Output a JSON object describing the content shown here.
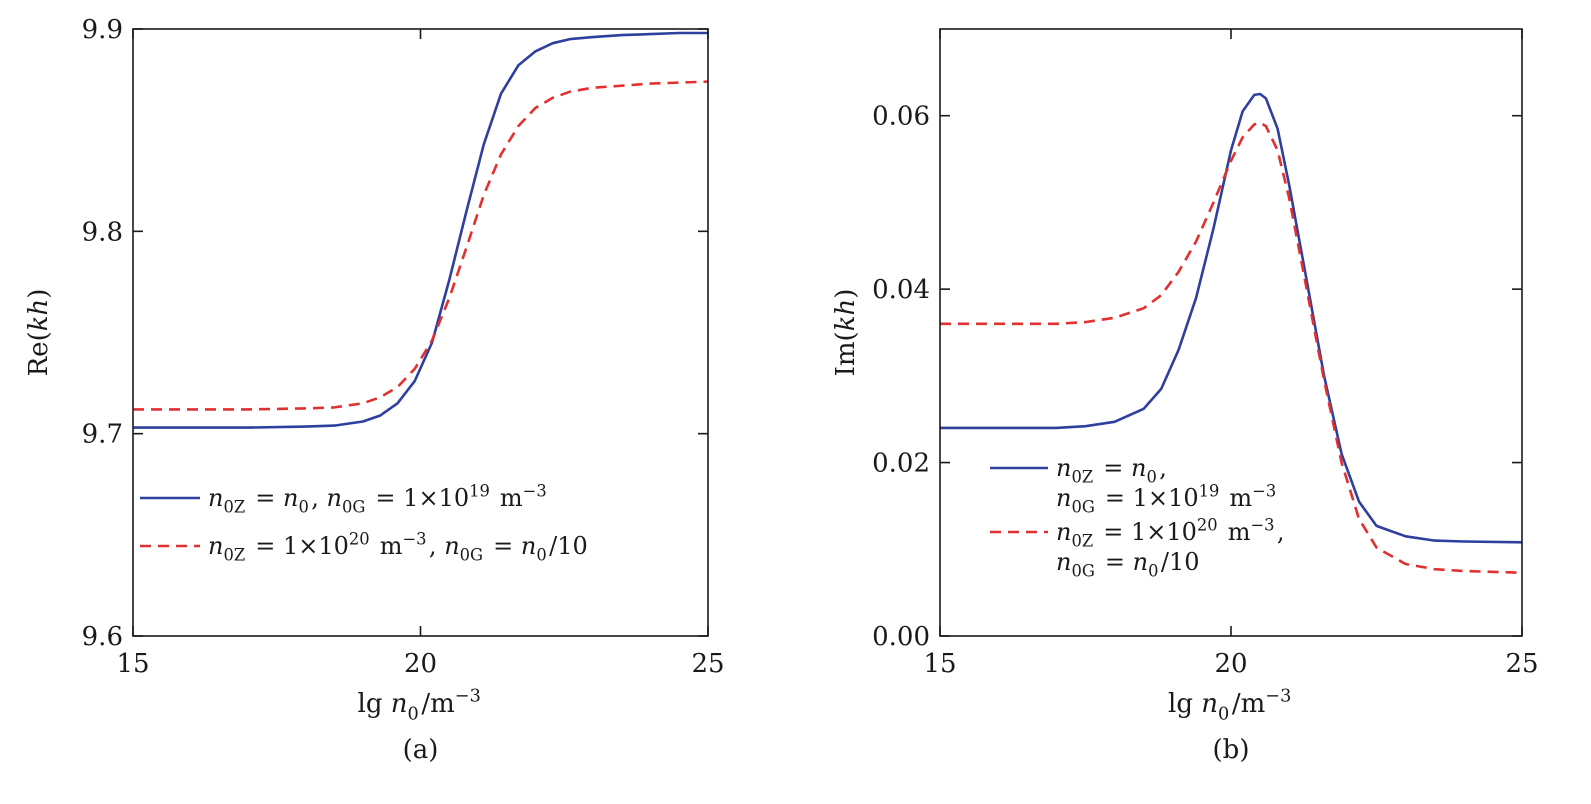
{
  "colors": {
    "series1": "#2e3f9e",
    "series2": "#e03030"
  },
  "chart_data": [
    {
      "type": "line",
      "panel_label": "(a)",
      "ylabel": "Re(kh)",
      "xlabel": "lg n0/m−3",
      "xlim": [
        15,
        25
      ],
      "ylim": [
        9.6,
        9.9
      ],
      "xticks": [
        15,
        20,
        25
      ],
      "xtick_labels": [
        "15",
        "20",
        "25"
      ],
      "yticks": [
        9.6,
        9.7,
        9.8,
        9.9
      ],
      "ytick_labels": [
        "9.6",
        "9.7",
        "9.8",
        "9.9"
      ],
      "grid": false,
      "legend_position": "lower-left",
      "series": [
        {
          "name": "n0Z = n0, n0G = 1×1019 m−3",
          "style": "solid",
          "legend_lines": [
            "n0Z = n0, n0G = 1×1019 m−3"
          ],
          "x": [
            15,
            16,
            17,
            18,
            18.5,
            19,
            19.3,
            19.6,
            19.9,
            20.2,
            20.5,
            20.8,
            21.1,
            21.4,
            21.7,
            22,
            22.3,
            22.6,
            23,
            23.5,
            24,
            24.5,
            25
          ],
          "y": [
            9.703,
            9.703,
            9.703,
            9.7035,
            9.704,
            9.706,
            9.709,
            9.715,
            9.726,
            9.745,
            9.776,
            9.81,
            9.843,
            9.868,
            9.882,
            9.889,
            9.893,
            9.895,
            9.896,
            9.897,
            9.8975,
            9.898,
            9.898
          ]
        },
        {
          "name": "n0Z = 1×1020 m−3, n0G = n0/10",
          "style": "dashed",
          "legend_lines": [
            "n0Z = 1×1020 m−3, n0G = n0/10"
          ],
          "x": [
            15,
            16,
            17,
            18,
            18.5,
            19,
            19.3,
            19.6,
            19.9,
            20.2,
            20.5,
            20.8,
            21.1,
            21.4,
            21.7,
            22,
            22.3,
            22.6,
            23,
            23.5,
            24,
            24.5,
            25
          ],
          "y": [
            9.712,
            9.712,
            9.712,
            9.7125,
            9.713,
            9.715,
            9.718,
            9.723,
            9.732,
            9.746,
            9.767,
            9.792,
            9.818,
            9.838,
            9.852,
            9.861,
            9.866,
            9.869,
            9.871,
            9.872,
            9.873,
            9.8735,
            9.874
          ]
        }
      ]
    },
    {
      "type": "line",
      "panel_label": "(b)",
      "ylabel": "Im(kh)",
      "xlabel": "lg n0/m−3",
      "xlim": [
        15,
        25
      ],
      "ylim": [
        0.0,
        0.07
      ],
      "xticks": [
        15,
        20,
        25
      ],
      "xtick_labels": [
        "15",
        "20",
        "25"
      ],
      "yticks": [
        0.0,
        0.02,
        0.04,
        0.06
      ],
      "ytick_labels": [
        "0.00",
        "0.02",
        "0.04",
        "0.06"
      ],
      "grid": false,
      "legend_position": "lower-left",
      "series": [
        {
          "name": "n0Z = n0, n0G = 1×1019 m−3",
          "style": "solid",
          "legend_lines": [
            "n0Z = n0,",
            "n0G = 1×1019 m−3"
          ],
          "x": [
            15,
            16,
            17,
            17.5,
            18,
            18.5,
            18.8,
            19.1,
            19.4,
            19.7,
            20,
            20.2,
            20.4,
            20.5,
            20.6,
            20.8,
            21,
            21.3,
            21.6,
            21.9,
            22.2,
            22.5,
            23,
            23.5,
            24,
            25
          ],
          "y": [
            0.024,
            0.024,
            0.024,
            0.0242,
            0.0247,
            0.0262,
            0.0285,
            0.033,
            0.039,
            0.047,
            0.056,
            0.0605,
            0.0624,
            0.0625,
            0.062,
            0.0585,
            0.052,
            0.041,
            0.03,
            0.021,
            0.0155,
            0.0127,
            0.0115,
            0.011,
            0.0109,
            0.0108
          ]
        },
        {
          "name": "n0Z = 1×1020 m−3, n0G = n0/10",
          "style": "dashed",
          "legend_lines": [
            "n0Z = 1×1020 m−3,",
            "n0G = n0/10"
          ],
          "x": [
            15,
            16,
            17,
            17.5,
            18,
            18.5,
            18.8,
            19.1,
            19.4,
            19.7,
            20,
            20.2,
            20.4,
            20.5,
            20.6,
            20.8,
            21,
            21.3,
            21.6,
            21.9,
            22.2,
            22.5,
            23,
            23.5,
            24,
            25
          ],
          "y": [
            0.036,
            0.036,
            0.036,
            0.0362,
            0.0367,
            0.0378,
            0.0393,
            0.042,
            0.0455,
            0.05,
            0.0548,
            0.0575,
            0.059,
            0.0592,
            0.0588,
            0.056,
            0.0505,
            0.04,
            0.0295,
            0.02,
            0.0135,
            0.0102,
            0.0083,
            0.0077,
            0.0075,
            0.0073
          ]
        }
      ]
    }
  ]
}
